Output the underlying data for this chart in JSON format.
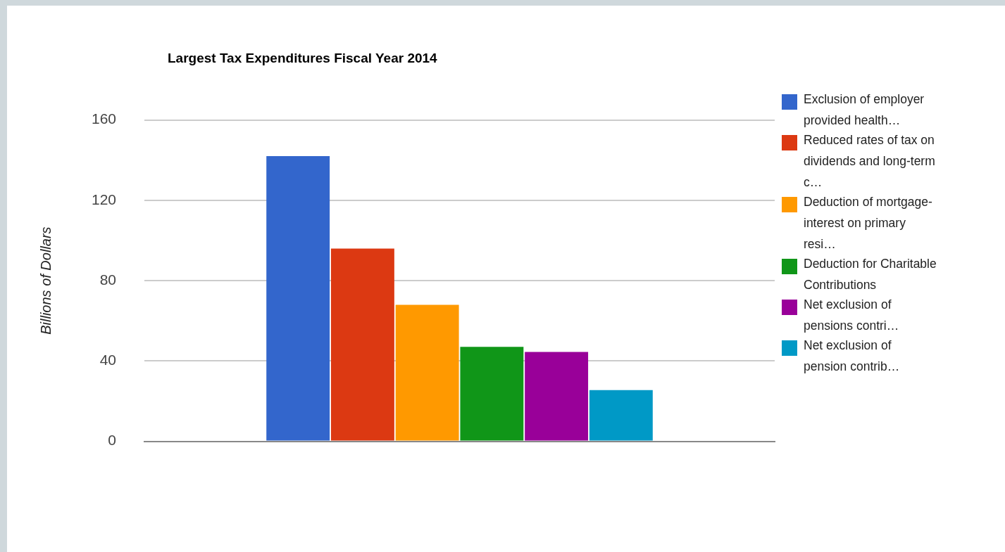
{
  "chart_data": {
    "type": "bar",
    "title": "Largest Tax Expenditures Fiscal Year 2014",
    "ylabel": "Billions of Dollars",
    "categories": [
      null
    ],
    "series": [
      {
        "name": "Exclusion of employer provided health…",
        "color": "#3366cc",
        "values": [
          142
        ]
      },
      {
        "name": "Reduced rates of tax on dividends and long-term c…",
        "color": "#dc3912",
        "values": [
          96
        ]
      },
      {
        "name": "Deduction of mortgage-interest on primary resi…",
        "color": "#ff9900",
        "values": [
          68
        ]
      },
      {
        "name": "Deduction for Charitable Contributions",
        "color": "#109618",
        "values": [
          47
        ]
      },
      {
        "name": "Net exclusion of pensions contri…",
        "color": "#990099",
        "values": [
          44.5
        ]
      },
      {
        "name": "Net exclusion of pension contrib…",
        "color": "#0099c6",
        "values": [
          25.5
        ]
      }
    ],
    "ylim": [
      0,
      160
    ],
    "yticks": [
      0,
      40,
      80,
      120,
      160
    ],
    "grid": "y",
    "legend": "right"
  }
}
